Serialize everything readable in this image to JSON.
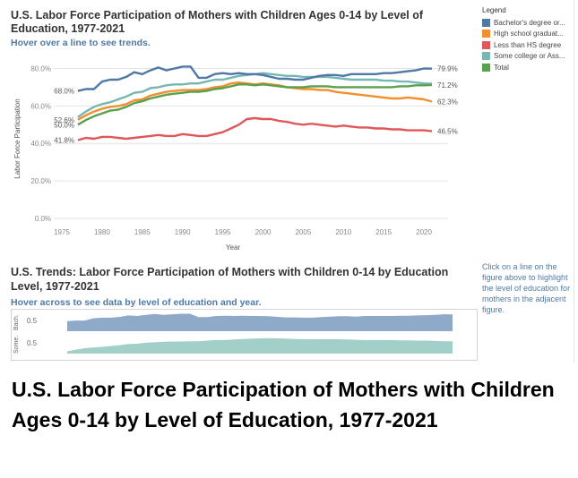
{
  "dashboard": {
    "title": "U.S. Labor Force Participation of Mothers with Children Ages 0-14 by Level of Education, 1977-2021",
    "hint": "Hover over a line to see trends.",
    "legend_title": "Legend",
    "sub_title": "U.S. Trends: Labor Force Participation of Mothers with Children 0-14 by Education Level, 1977-2021",
    "sub_hint": "Hover across to see data by level of education and year.",
    "side_note": "Click on a line on the figure above to highlight the level of education for mothers in the adjacent figure.",
    "trend_rows": [
      {
        "label": "Bach.",
        "tick": "0.5",
        "color": "#8fa9c8"
      },
      {
        "label": "Some..",
        "tick": "0.5",
        "color": "#a3cfc9"
      }
    ]
  },
  "caption": "U.S. Labor Force Participation of Mothers with Children Ages 0-14 by Level of Education, 1977-2021",
  "chart_data": {
    "type": "line",
    "title": "U.S. Labor Force Participation of Mothers with Children Ages 0-14 by Level of Education, 1977-2021",
    "xlabel": "Year",
    "ylabel": "Labor Force Participation",
    "xlim": [
      1974,
      2023
    ],
    "ylim": [
      0,
      85
    ],
    "x_ticks": [
      1975,
      1980,
      1985,
      1990,
      1995,
      2000,
      2005,
      2010,
      2015,
      2020
    ],
    "x_tick_labels": [
      "1975",
      "1980",
      "1985",
      "1990",
      "1995",
      "2000",
      "2005",
      "2010",
      "2015",
      "2020"
    ],
    "y_ticks": [
      0,
      20,
      40,
      60,
      80
    ],
    "y_tick_labels": [
      "0.0%",
      "20.0%",
      "40.0%",
      "60.0%",
      "80.0%"
    ],
    "grid": "horizontal",
    "legend_position": "top-right",
    "x": [
      1977,
      1978,
      1979,
      1980,
      1981,
      1982,
      1983,
      1984,
      1985,
      1986,
      1987,
      1988,
      1989,
      1990,
      1991,
      1992,
      1993,
      1994,
      1995,
      1996,
      1997,
      1998,
      1999,
      2000,
      2001,
      2002,
      2003,
      2004,
      2005,
      2006,
      2007,
      2008,
      2009,
      2010,
      2011,
      2012,
      2013,
      2014,
      2015,
      2016,
      2017,
      2018,
      2019,
      2020,
      2021
    ],
    "series": [
      {
        "name": "Bachelor's degree or...",
        "color": "#4e79a7",
        "start_label": "68.0%",
        "end_label": "79.9%",
        "values": [
          68.0,
          69.0,
          69.0,
          73.0,
          74.0,
          74.0,
          75.5,
          78.0,
          77.0,
          79.0,
          80.5,
          79.0,
          80.0,
          81.0,
          81.0,
          75.0,
          75.0,
          77.0,
          77.5,
          77.0,
          77.5,
          77.0,
          77.0,
          76.5,
          75.5,
          74.5,
          74.5,
          74.0,
          74.0,
          75.0,
          76.0,
          76.5,
          76.5,
          76.0,
          77.0,
          77.0,
          77.0,
          77.0,
          77.5,
          77.5,
          78.0,
          78.5,
          79.0,
          80.0,
          79.9
        ]
      },
      {
        "name": "High school graduat...",
        "color": "#f28e2b",
        "start_label": "52.6%",
        "end_label": "62.3%",
        "values": [
          52.6,
          55.0,
          57.0,
          58.5,
          59.5,
          60.0,
          61.0,
          63.0,
          63.5,
          65.5,
          66.5,
          67.5,
          68.0,
          68.5,
          68.5,
          68.5,
          69.0,
          70.0,
          70.5,
          72.0,
          72.5,
          72.0,
          71.5,
          72.0,
          71.5,
          71.0,
          70.0,
          69.5,
          69.0,
          69.0,
          68.5,
          68.5,
          67.5,
          67.0,
          66.5,
          66.0,
          65.5,
          65.0,
          64.5,
          64.0,
          64.0,
          64.5,
          64.0,
          63.5,
          62.3
        ]
      },
      {
        "name": "Less than HS degree",
        "color": "#e15759",
        "start_label": "41.8%",
        "end_label": "46.5%",
        "values": [
          41.8,
          43.0,
          42.5,
          43.5,
          43.5,
          43.0,
          42.5,
          43.0,
          43.5,
          44.0,
          44.5,
          44.0,
          44.0,
          45.0,
          44.5,
          44.0,
          44.0,
          45.0,
          46.0,
          48.0,
          50.0,
          53.0,
          53.5,
          53.0,
          53.0,
          52.0,
          51.5,
          50.5,
          50.0,
          50.5,
          50.0,
          49.5,
          49.0,
          49.5,
          49.0,
          48.5,
          48.5,
          48.0,
          48.0,
          47.5,
          47.5,
          47.0,
          47.0,
          47.0,
          46.5
        ]
      },
      {
        "name": "Some college or Ass...",
        "color": "#76b7b2",
        "start_label": "",
        "end_label": "",
        "values": [
          54.0,
          57.0,
          59.5,
          61.0,
          62.0,
          63.5,
          65.0,
          67.0,
          67.5,
          69.5,
          70.0,
          71.0,
          71.5,
          71.5,
          72.0,
          72.0,
          73.0,
          74.0,
          74.0,
          75.0,
          76.0,
          76.5,
          77.0,
          77.5,
          77.0,
          76.5,
          76.0,
          76.0,
          75.5,
          75.5,
          75.5,
          75.5,
          75.0,
          74.5,
          74.0,
          74.0,
          74.0,
          74.0,
          73.5,
          73.5,
          73.0,
          73.0,
          72.5,
          72.0,
          71.8
        ]
      },
      {
        "name": "Total",
        "color": "#59a14f",
        "start_label": "50.0%",
        "end_label": "71.2%",
        "values": [
          50.0,
          52.5,
          54.5,
          56.0,
          57.5,
          58.0,
          59.5,
          61.5,
          62.5,
          64.0,
          65.0,
          66.0,
          66.5,
          67.0,
          67.5,
          67.5,
          68.0,
          69.0,
          69.5,
          70.5,
          71.5,
          71.5,
          71.0,
          71.5,
          71.0,
          70.5,
          70.0,
          70.0,
          70.0,
          70.5,
          70.5,
          70.5,
          70.0,
          70.0,
          70.0,
          70.0,
          70.0,
          70.0,
          70.0,
          70.0,
          70.5,
          70.5,
          71.0,
          71.0,
          71.2
        ]
      }
    ]
  }
}
